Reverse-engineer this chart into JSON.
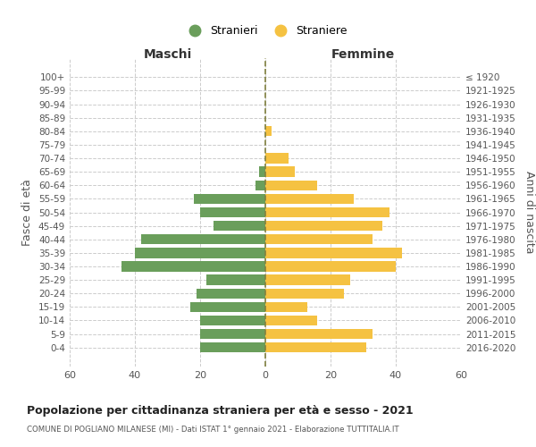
{
  "age_groups": [
    "100+",
    "95-99",
    "90-94",
    "85-89",
    "80-84",
    "75-79",
    "70-74",
    "65-69",
    "60-64",
    "55-59",
    "50-54",
    "45-49",
    "40-44",
    "35-39",
    "30-34",
    "25-29",
    "20-24",
    "15-19",
    "10-14",
    "5-9",
    "0-4"
  ],
  "birth_years": [
    "≤ 1920",
    "1921-1925",
    "1926-1930",
    "1931-1935",
    "1936-1940",
    "1941-1945",
    "1946-1950",
    "1951-1955",
    "1956-1960",
    "1961-1965",
    "1966-1970",
    "1971-1975",
    "1976-1980",
    "1981-1985",
    "1986-1990",
    "1991-1995",
    "1996-2000",
    "2001-2005",
    "2006-2010",
    "2011-2015",
    "2016-2020"
  ],
  "males": [
    0,
    0,
    0,
    0,
    0,
    0,
    0,
    2,
    3,
    22,
    20,
    16,
    38,
    40,
    44,
    18,
    21,
    23,
    20,
    20,
    20
  ],
  "females": [
    0,
    0,
    0,
    0,
    2,
    0,
    7,
    9,
    16,
    27,
    38,
    36,
    33,
    42,
    40,
    26,
    24,
    13,
    16,
    33,
    31
  ],
  "male_color": "#6a9e5b",
  "female_color": "#f5c242",
  "grid_color": "#cccccc",
  "center_line_color": "#808040",
  "title": "Popolazione per cittadinanza straniera per età e sesso - 2021",
  "subtitle": "COMUNE DI POGLIANO MILANESE (MI) - Dati ISTAT 1° gennaio 2021 - Elaborazione TUTTITALIA.IT",
  "xlabel_left": "Maschi",
  "xlabel_right": "Femmine",
  "ylabel_left": "Fasce di età",
  "ylabel_right": "Anni di nascita",
  "legend_male": "Stranieri",
  "legend_female": "Straniere",
  "xlim": 60,
  "background_color": "#ffffff"
}
